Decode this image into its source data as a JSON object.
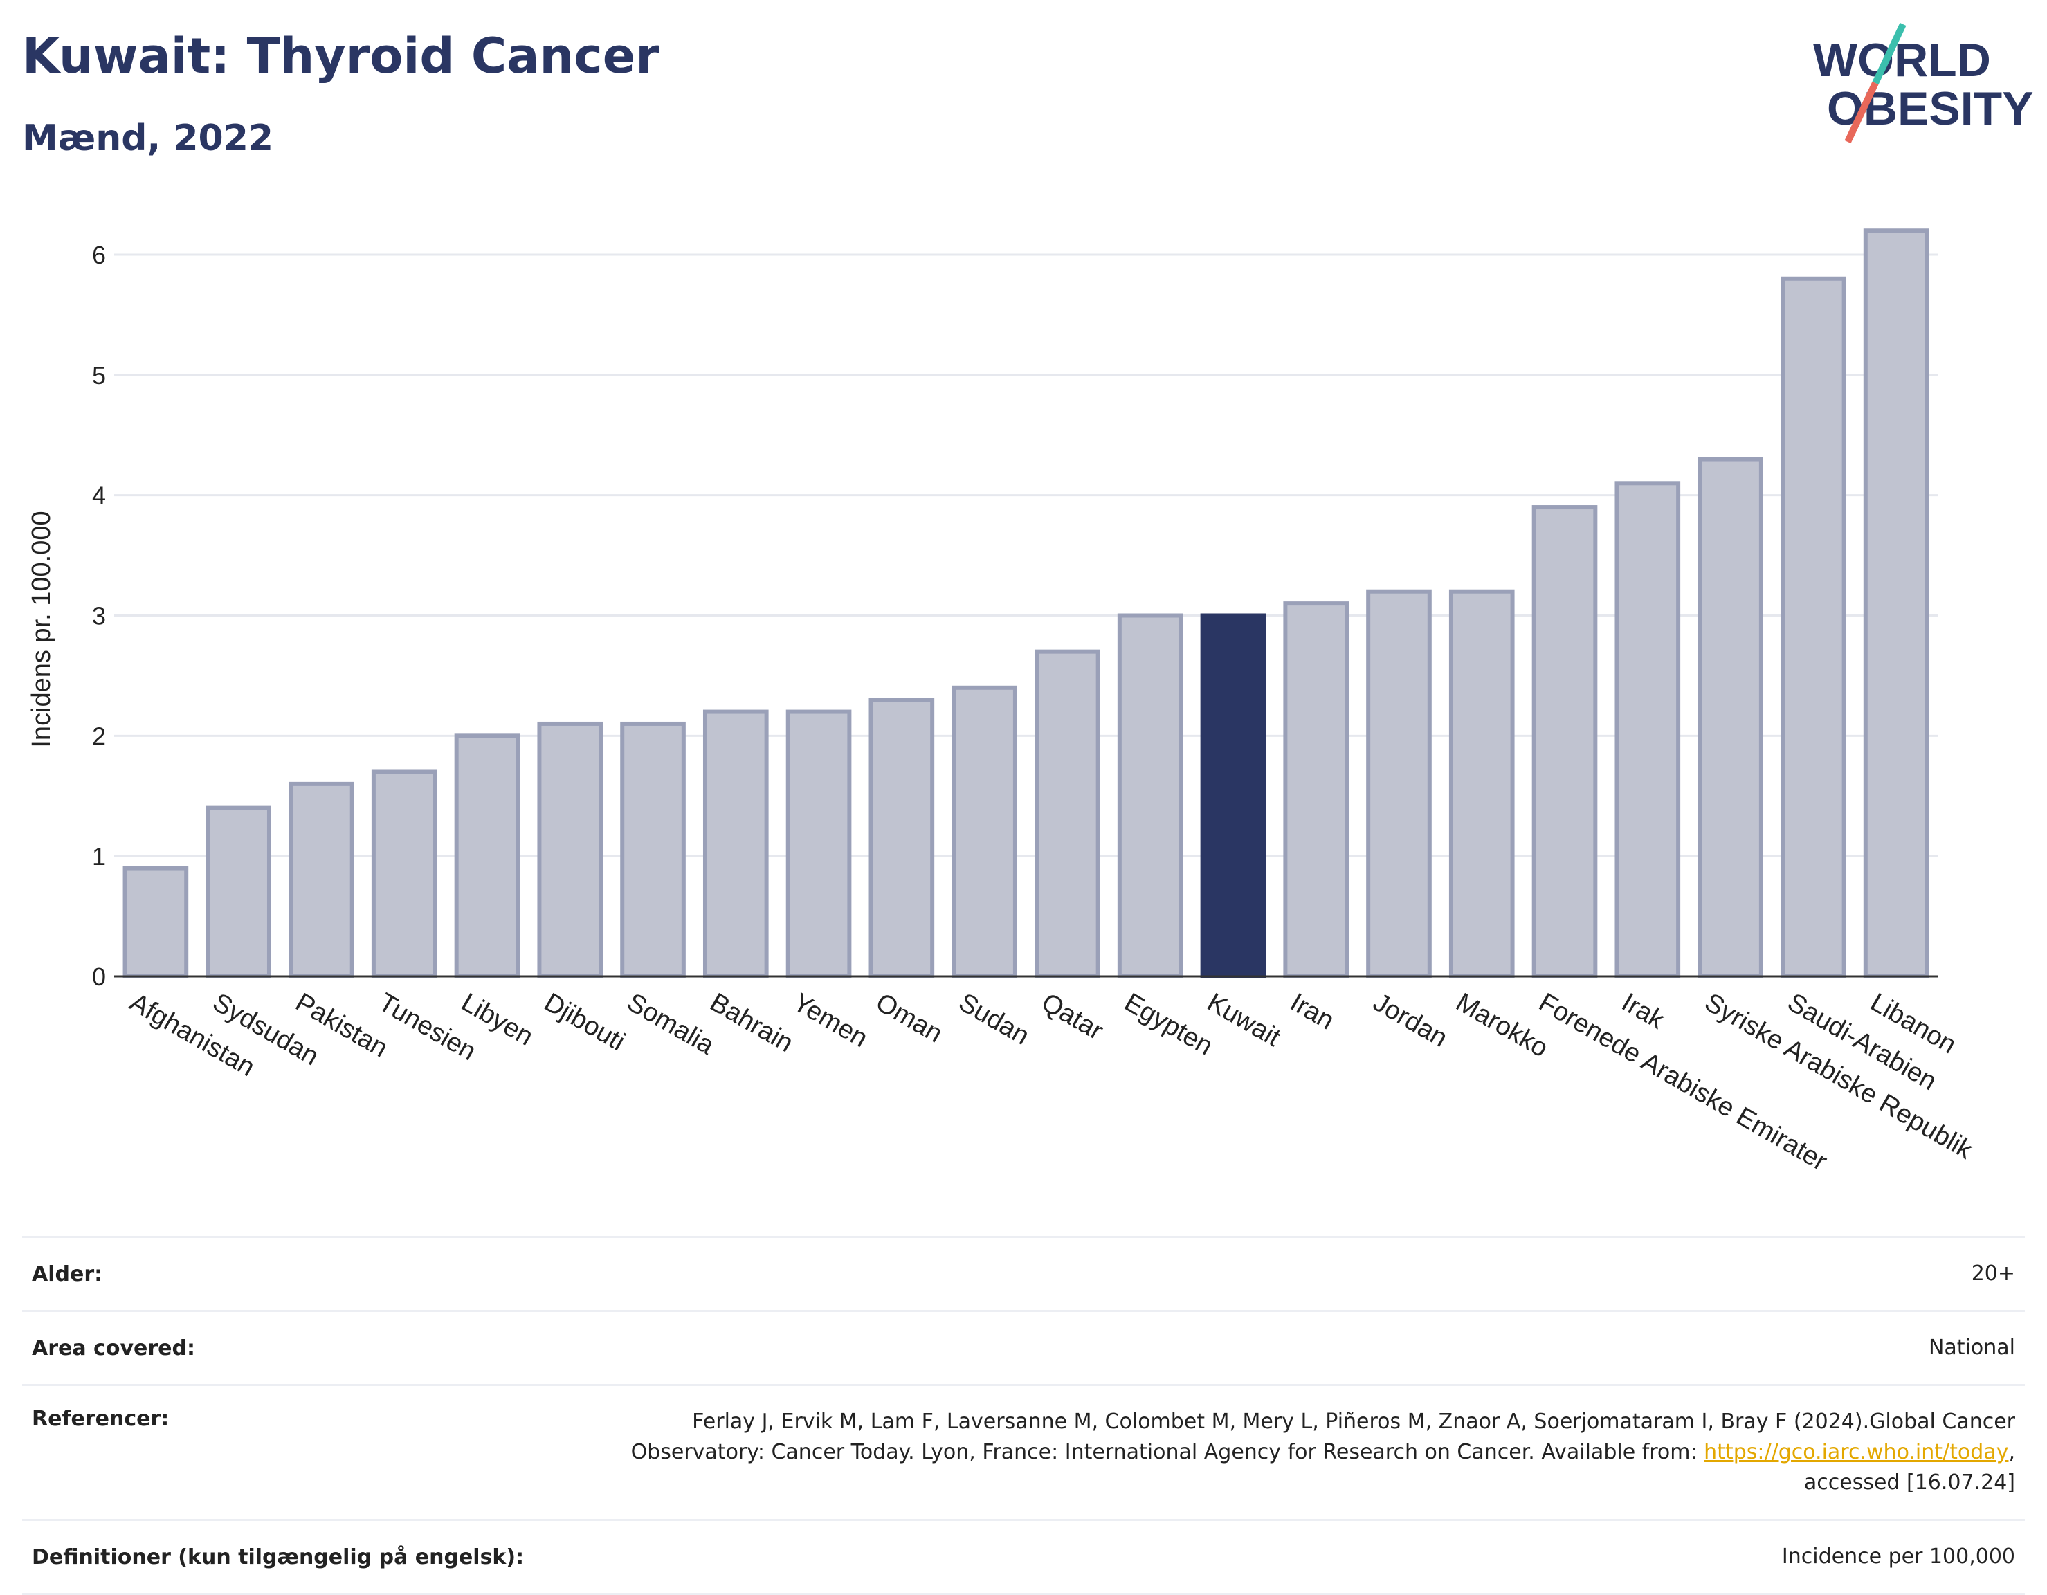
{
  "header": {
    "title": "Kuwait: Thyroid Cancer",
    "subtitle": "Mænd, 2022",
    "logo_line1": "WORLD",
    "logo_line2": "OBESITY"
  },
  "colors": {
    "bar": "#c0c3d0",
    "bar_stroke": "#9aa0b8",
    "highlight": "#2a3663",
    "title": "#2a3663",
    "logo_teal": "#3bbfad",
    "logo_coral": "#e8685a"
  },
  "chart_data": {
    "type": "bar",
    "ylabel": "Incidens pr. 100.000",
    "ylim": [
      0,
      6.5
    ],
    "yticks": [
      0,
      1,
      2,
      3,
      4,
      5,
      6
    ],
    "grid": true,
    "highlight": "Kuwait",
    "categories": [
      "Afghanistan",
      "Sydsudan",
      "Pakistan",
      "Tunesien",
      "Libyen",
      "Djibouti",
      "Somalia",
      "Bahrain",
      "Yemen",
      "Oman",
      "Sudan",
      "Qatar",
      "Egypten",
      "Kuwait",
      "Iran",
      "Jordan",
      "Marokko",
      "Forenede Arabiske Emirater",
      "Irak",
      "Syriske Arabiske Republik",
      "Saudi-Arabien",
      "Libanon"
    ],
    "values": [
      0.9,
      1.4,
      1.6,
      1.7,
      2.0,
      2.1,
      2.1,
      2.2,
      2.2,
      2.3,
      2.4,
      2.7,
      3.0,
      3.0,
      3.1,
      3.2,
      3.2,
      3.9,
      4.1,
      4.3,
      5.8,
      6.2
    ]
  },
  "info": {
    "age_label": "Alder:",
    "age_value": "20+",
    "area_label": "Area covered:",
    "area_value": "National",
    "ref_label": "Referencer:",
    "ref_line1": "Ferlay J, Ervik M, Lam F, Laversanne M, Colombet M, Mery L, Piñeros M, Znaor A, Soerjomataram I, Bray F (2024).Global Cancer",
    "ref_line2": "Observatory: Cancer Today. Lyon, France: International Agency for Research on Cancer. Available from: ",
    "ref_link": "https://gco.iarc.who.int/today",
    "ref_line2_end": ",",
    "ref_line3": "accessed [16.07.24]",
    "def_label": "Definitioner (kun tilgængelig på engelsk):",
    "def_value": "Incidence per 100,000"
  }
}
